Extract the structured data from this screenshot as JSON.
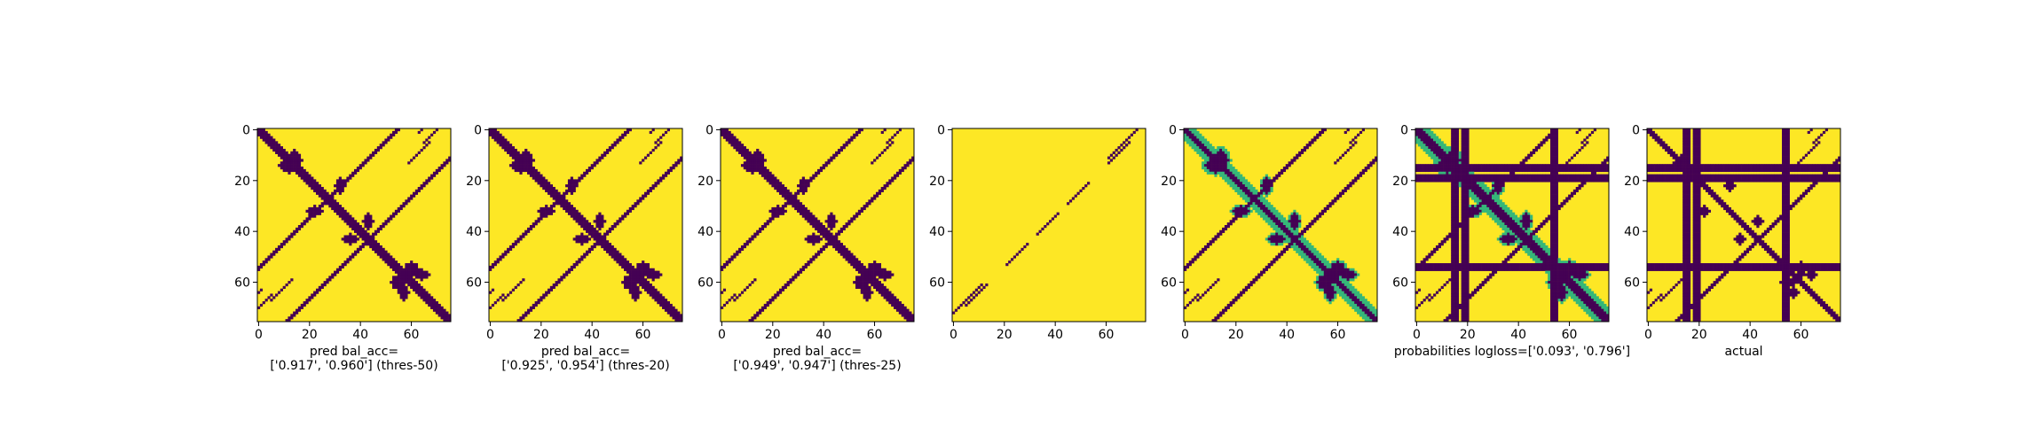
{
  "colors": {
    "background": "#fde725",
    "foreground": "#440154",
    "mid": "#35b779",
    "mid2": "#31688e",
    "light": "#b5de2b"
  },
  "chart_data": [
    {
      "type": "heatmap",
      "n": 76,
      "xticks": [
        "0",
        "20",
        "40",
        "60"
      ],
      "yticks": [
        "0",
        "20",
        "40",
        "60"
      ],
      "caption": [
        "pred bal_acc=",
        "['0.917', '0.960'] (thres-50)"
      ],
      "features": {
        "diagonal": true,
        "diagonal_width": 2.0,
        "offdiag_segments": [
          [
            5,
            8,
            1
          ],
          [
            65,
            70,
            1
          ],
          [
            63,
            74,
            1
          ]
        ],
        "blobs": [
          [
            12,
            14,
            4,
            3
          ],
          [
            36,
            43,
            3,
            2
          ],
          [
            55,
            60,
            3,
            3
          ],
          [
            64,
            57,
            3,
            2
          ],
          [
            22,
            32,
            3,
            2
          ]
        ],
        "antidiag_arcs": [
          [
            58,
            64,
            6
          ],
          [
            25,
            36,
            4
          ]
        ],
        "bands": []
      }
    },
    {
      "type": "heatmap",
      "n": 76,
      "xticks": [
        "0",
        "20",
        "40",
        "60"
      ],
      "yticks": [
        "0",
        "20",
        "40",
        "60"
      ],
      "caption": [
        "pred bal_acc=",
        "['0.925', '0.954'] (thres-20)"
      ],
      "features": {
        "diagonal": true,
        "diagonal_width": 2.6,
        "offdiag_segments": [
          [
            5,
            8,
            1
          ],
          [
            65,
            70,
            1
          ],
          [
            63,
            74,
            1
          ]
        ],
        "blobs": [
          [
            12,
            14,
            4,
            3
          ],
          [
            36,
            43,
            3,
            2
          ],
          [
            55,
            60,
            3,
            3
          ],
          [
            64,
            57,
            3,
            2
          ],
          [
            22,
            32,
            3,
            2
          ]
        ],
        "antidiag_arcs": [
          [
            58,
            64,
            6
          ],
          [
            25,
            36,
            4
          ]
        ],
        "bands": []
      }
    },
    {
      "type": "heatmap",
      "n": 76,
      "xticks": [
        "0",
        "20",
        "40",
        "60"
      ],
      "yticks": [
        "0",
        "20",
        "40",
        "60"
      ],
      "caption": [
        "pred bal_acc=",
        "['0.949', '0.947'] (thres-25)"
      ],
      "features": {
        "diagonal": true,
        "diagonal_width": 2.4,
        "offdiag_segments": [
          [
            5,
            8,
            1
          ],
          [
            65,
            70,
            1
          ],
          [
            63,
            74,
            1
          ]
        ],
        "blobs": [
          [
            12,
            14,
            4,
            3
          ],
          [
            36,
            43,
            3,
            2
          ],
          [
            55,
            60,
            3,
            3
          ],
          [
            64,
            57,
            3,
            2
          ],
          [
            22,
            32,
            3,
            2
          ]
        ],
        "antidiag_arcs": [
          [
            58,
            64,
            6
          ],
          [
            25,
            36,
            4
          ]
        ],
        "bands": []
      }
    },
    {
      "type": "heatmap",
      "n": 76,
      "xticks": [
        "0",
        "20",
        "40",
        "60"
      ],
      "yticks": [
        "0",
        "20",
        "40",
        "60"
      ],
      "caption": [],
      "features": {
        "diagonal": false,
        "diagonal_width": 0,
        "offdiag_segments": [
          [
            3,
            6,
            0.6
          ],
          [
            21,
            22,
            0.6
          ],
          [
            33,
            34,
            0.6
          ],
          [
            45,
            46,
            0.6
          ],
          [
            61,
            62,
            0.6
          ],
          [
            67,
            70,
            0.6
          ]
        ],
        "blobs": [],
        "antidiag_arcs": [],
        "bands": []
      }
    },
    {
      "type": "heatmap",
      "n": 76,
      "xticks": [
        "0",
        "20",
        "40",
        "60"
      ],
      "yticks": [
        "0",
        "20",
        "40",
        "60"
      ],
      "caption": [],
      "soft": true,
      "features": {
        "diagonal": true,
        "diagonal_width": 1.2,
        "offdiag_segments": [
          [
            5,
            8,
            1.2
          ],
          [
            65,
            70,
            1.2
          ],
          [
            63,
            74,
            1.2
          ]
        ],
        "blobs": [
          [
            12,
            14,
            4,
            3
          ],
          [
            36,
            43,
            3,
            2
          ],
          [
            55,
            60,
            3,
            3
          ],
          [
            64,
            57,
            3,
            2
          ],
          [
            22,
            32,
            3,
            2
          ]
        ],
        "antidiag_arcs": [
          [
            58,
            64,
            6
          ],
          [
            25,
            36,
            4
          ]
        ],
        "bands": []
      }
    },
    {
      "type": "heatmap",
      "n": 76,
      "xticks": [
        "0",
        "20",
        "40",
        "60"
      ],
      "yticks": [
        "0",
        "20",
        "40",
        "60"
      ],
      "caption": [
        "probabilities logloss=['0.093', '0.796']"
      ],
      "soft": true,
      "features": {
        "diagonal": true,
        "diagonal_width": 2.0,
        "offdiag_segments": [
          [
            5,
            8,
            1
          ],
          [
            65,
            70,
            1
          ],
          [
            63,
            74,
            1
          ]
        ],
        "blobs": [
          [
            12,
            14,
            4,
            3
          ],
          [
            36,
            43,
            3,
            2
          ],
          [
            55,
            60,
            3,
            3
          ],
          [
            64,
            57,
            3,
            2
          ],
          [
            22,
            32,
            3,
            2
          ]
        ],
        "antidiag_arcs": [
          [
            58,
            64,
            6
          ],
          [
            25,
            36,
            4
          ]
        ],
        "bands": [
          [
            15,
            1
          ],
          [
            19,
            1
          ],
          [
            54,
            1
          ]
        ]
      }
    },
    {
      "type": "heatmap",
      "n": 76,
      "xticks": [
        "0",
        "20",
        "40",
        "60"
      ],
      "yticks": [
        "0",
        "20",
        "40",
        "60"
      ],
      "caption": [
        "actual"
      ],
      "features": {
        "diagonal": true,
        "diagonal_width": 1.8,
        "offdiag_segments": [
          [
            5,
            8,
            1
          ],
          [
            65,
            70,
            1
          ],
          [
            63,
            74,
            1
          ]
        ],
        "blobs": [
          [
            12,
            14,
            3,
            2
          ],
          [
            36,
            43,
            2,
            2
          ],
          [
            55,
            60,
            3,
            2
          ],
          [
            64,
            57,
            2,
            2
          ],
          [
            22,
            32,
            2,
            2
          ]
        ],
        "antidiag_arcs": [
          [
            58,
            64,
            5
          ]
        ],
        "bands": [
          [
            15,
            1
          ],
          [
            19,
            1
          ],
          [
            54,
            1
          ]
        ]
      }
    }
  ]
}
